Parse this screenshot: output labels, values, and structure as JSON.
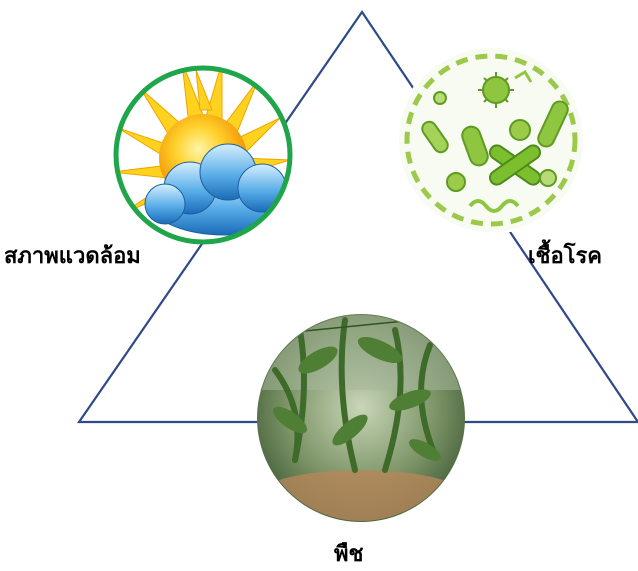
{
  "labels": {
    "environment": "สภาพแวดล้อม",
    "pathogen": "เชื้อโรค",
    "plant": "พืช"
  },
  "colors": {
    "triangle": "#2e4a87",
    "environment_ring": "#1fa64a"
  },
  "icons": {
    "environment": "sun-and-cloud-icon",
    "pathogen": "microbes-icon",
    "plant": "plant-photo"
  }
}
